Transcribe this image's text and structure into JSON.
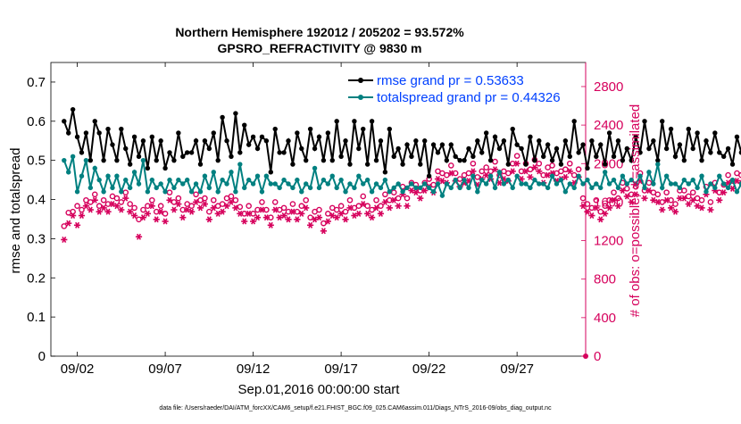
{
  "chart_data": {
    "type": "line",
    "title": "Northern Hemisphere 192012 / 205202 = 93.572%",
    "subtitle": "GPSRO_REFRACTIVITY @ 9830 m",
    "xlabel": "Sep.01,2016 00:00:00 start",
    "ylabel_left": "rmse and totalspread",
    "ylabel_right": "# of obs: o=possible; ∗=assimilated",
    "footer": "data file: /Users/raeder/DAI/ATM_forcXX/CAM6_setup/f.e21.FHIST_BGC.f09_025.CAM6assim.011/Diags_NTrS_2016-09/obs_diag_output.nc",
    "xlim": [
      0.5,
      30.9
    ],
    "ylim_left": [
      0,
      0.75
    ],
    "ylim_right": [
      0,
      3050
    ],
    "x_ticks": [
      {
        "value": 2,
        "label": "09/02"
      },
      {
        "value": 7,
        "label": "09/07"
      },
      {
        "value": 12,
        "label": "09/12"
      },
      {
        "value": 17,
        "label": "09/17"
      },
      {
        "value": 22,
        "label": "09/22"
      },
      {
        "value": 27,
        "label": "09/27"
      }
    ],
    "y_ticks_left": [
      "0",
      "0.1",
      "0.2",
      "0.3",
      "0.4",
      "0.5",
      "0.6",
      "0.7"
    ],
    "y_ticks_right": [
      "0",
      "400",
      "800",
      "1200",
      "1600",
      "2000",
      "2400",
      "2800"
    ],
    "time_step_days": 0.25,
    "start_day": 1.25,
    "series": [
      {
        "name": "rmse grand pr = 0.53633",
        "color": "#000000",
        "marker": "star",
        "values": [
          0.6,
          0.57,
          0.63,
          0.56,
          0.52,
          0.57,
          0.5,
          0.6,
          0.57,
          0.5,
          0.58,
          0.54,
          0.5,
          0.58,
          0.53,
          0.49,
          0.56,
          0.51,
          0.55,
          0.48,
          0.56,
          0.5,
          0.55,
          0.48,
          0.52,
          0.5,
          0.57,
          0.51,
          0.52,
          0.52,
          0.55,
          0.49,
          0.55,
          0.53,
          0.57,
          0.5,
          0.61,
          0.55,
          0.51,
          0.62,
          0.52,
          0.59,
          0.54,
          0.56,
          0.53,
          0.56,
          0.55,
          0.47,
          0.58,
          0.52,
          0.52,
          0.55,
          0.49,
          0.57,
          0.53,
          0.5,
          0.58,
          0.53,
          0.56,
          0.5,
          0.57,
          0.5,
          0.6,
          0.51,
          0.55,
          0.49,
          0.6,
          0.53,
          0.58,
          0.49,
          0.6,
          0.5,
          0.55,
          0.47,
          0.58,
          0.51,
          0.53,
          0.49,
          0.54,
          0.51,
          0.55,
          0.49,
          0.55,
          0.46,
          0.54,
          0.52,
          0.54,
          0.5,
          0.54,
          0.51,
          0.5,
          0.5,
          0.53,
          0.51,
          0.55,
          0.52,
          0.57,
          0.5,
          0.56,
          0.53,
          0.55,
          0.49,
          0.58,
          0.54,
          0.53,
          0.49,
          0.56,
          0.5,
          0.55,
          0.51,
          0.54,
          0.5,
          0.53,
          0.49,
          0.55,
          0.51,
          0.6,
          0.52,
          0.54,
          0.48,
          0.55,
          0.51,
          0.54,
          0.49,
          0.57,
          0.51,
          0.55,
          0.5,
          0.53,
          0.5,
          0.56,
          0.52,
          0.6,
          0.53,
          0.55,
          0.5,
          0.6,
          0.53,
          0.58,
          0.51,
          0.54,
          0.5,
          0.58,
          0.53,
          0.57,
          0.5,
          0.55,
          0.52,
          0.57,
          0.52,
          0.51,
          0.53,
          0.49,
          0.56,
          0.52,
          0.51,
          0.55
        ]
      },
      {
        "name": "totalspread grand pr = 0.44326",
        "color": "#008080",
        "marker": "dot",
        "values": [
          0.5,
          0.47,
          0.51,
          0.42,
          0.46,
          0.5,
          0.43,
          0.48,
          0.45,
          0.42,
          0.46,
          0.43,
          0.46,
          0.42,
          0.45,
          0.43,
          0.47,
          0.44,
          0.5,
          0.42,
          0.45,
          0.43,
          0.44,
          0.42,
          0.45,
          0.43,
          0.45,
          0.44,
          0.45,
          0.42,
          0.44,
          0.42,
          0.46,
          0.43,
          0.47,
          0.42,
          0.45,
          0.44,
          0.47,
          0.42,
          0.49,
          0.43,
          0.45,
          0.44,
          0.46,
          0.42,
          0.46,
          0.44,
          0.44,
          0.43,
          0.45,
          0.44,
          0.43,
          0.45,
          0.42,
          0.44,
          0.43,
          0.48,
          0.43,
          0.45,
          0.44,
          0.46,
          0.43,
          0.45,
          0.42,
          0.44,
          0.43,
          0.46,
          0.44,
          0.45,
          0.42,
          0.44,
          0.43,
          0.45,
          0.42,
          0.43,
          0.44,
          0.42,
          0.43,
          0.44,
          0.43,
          0.43,
          0.44,
          0.43,
          0.42,
          0.44,
          0.41,
          0.44,
          0.43,
          0.45,
          0.43,
          0.45,
          0.43,
          0.46,
          0.42,
          0.45,
          0.44,
          0.46,
          0.43,
          0.47,
          0.44,
          0.45,
          0.43,
          0.46,
          0.44,
          0.44,
          0.43,
          0.45,
          0.44,
          0.44,
          0.43,
          0.46,
          0.44,
          0.45,
          0.42,
          0.44,
          0.43,
          0.46,
          0.44,
          0.45,
          0.43,
          0.44,
          0.43,
          0.47,
          0.44,
          0.45,
          0.43,
          0.46,
          0.44,
          0.45,
          0.44,
          0.46,
          0.43,
          0.47,
          0.44,
          0.49,
          0.43,
          0.46,
          0.44,
          0.44,
          0.43,
          0.45,
          0.44,
          0.45,
          0.43,
          0.46,
          0.42,
          0.44,
          0.43,
          0.46,
          0.44,
          0.43,
          0.45,
          0.42,
          0.44,
          0.42,
          0.46
        ]
      },
      {
        "name": "possible",
        "color": "#d6005c",
        "marker": "circle",
        "axis": "right",
        "values": [
          1350,
          1490,
          1500,
          1560,
          1520,
          1620,
          1600,
          1680,
          1560,
          1620,
          1580,
          1660,
          1640,
          1600,
          1700,
          1580,
          1540,
          1420,
          1520,
          1560,
          1620,
          1500,
          1560,
          1480,
          1700,
          1600,
          1640,
          1520,
          1580,
          1560,
          1680,
          1620,
          1640,
          1500,
          1620,
          1560,
          1580,
          1640,
          1660,
          1620,
          1550,
          1480,
          1560,
          1480,
          1520,
          1600,
          1520,
          1440,
          1600,
          1520,
          1540,
          1500,
          1580,
          1500,
          1560,
          1620,
          1440,
          1500,
          1520,
          1380,
          1480,
          1540,
          1520,
          1560,
          1500,
          1620,
          1540,
          1560,
          1660,
          1560,
          1520,
          1620,
          1560,
          1680,
          1620,
          1700,
          1640,
          1760,
          1640,
          1800,
          1780,
          1720,
          1800,
          1840,
          1780,
          1920,
          1900,
          1880,
          1980,
          1900,
          1840,
          1880,
          1900,
          2000,
          1860,
          1920,
          1960,
          1920,
          2020,
          1880,
          1920,
          1900,
          2000,
          2080,
          1920,
          2000,
          1940,
          2040,
          2000,
          1880,
          1960,
          1980,
          1900,
          1920,
          1940,
          2000,
          1880,
          1940,
          1640,
          1580,
          1540,
          1620,
          1500,
          1560,
          1620,
          1700,
          1640,
          1800,
          1740,
          1680,
          1760,
          1900,
          1720,
          1800,
          1700,
          1680,
          1600,
          1700,
          1620,
          1580,
          1720,
          1720,
          1660,
          1700,
          1640,
          1620,
          1760,
          1600,
          1800,
          1700,
          1780,
          1880,
          1820,
          1900,
          1880
        ]
      },
      {
        "name": "assimilated",
        "color": "#d6005c",
        "marker": "asterisk",
        "axis": "right",
        "values": [
          1210,
          1380,
          1460,
          1360,
          1460,
          1560,
          1520,
          1620,
          1500,
          1540,
          1500,
          1580,
          1560,
          1520,
          1640,
          1500,
          1460,
          1240,
          1440,
          1480,
          1560,
          1420,
          1500,
          1400,
          1620,
          1520,
          1580,
          1440,
          1520,
          1500,
          1600,
          1540,
          1580,
          1420,
          1540,
          1480,
          1500,
          1560,
          1600,
          1540,
          1480,
          1400,
          1480,
          1400,
          1440,
          1520,
          1440,
          1360,
          1520,
          1440,
          1460,
          1420,
          1500,
          1420,
          1480,
          1540,
          1360,
          1420,
          1440,
          1300,
          1400,
          1460,
          1440,
          1480,
          1420,
          1540,
          1460,
          1480,
          1580,
          1480,
          1440,
          1540,
          1480,
          1600,
          1540,
          1620,
          1560,
          1680,
          1560,
          1720,
          1700,
          1640,
          1720,
          1760,
          1700,
          1840,
          1820,
          1800,
          1900,
          1820,
          1760,
          1800,
          1820,
          1920,
          1780,
          1840,
          1880,
          1840,
          1940,
          1800,
          1840,
          1820,
          1920,
          2000,
          1840,
          1920,
          1860,
          1960,
          1920,
          1800,
          1880,
          1900,
          1820,
          1840,
          1860,
          1920,
          1800,
          1860,
          1560,
          1500,
          1460,
          1540,
          1420,
          1480,
          1540,
          1620,
          1560,
          1720,
          1660,
          1600,
          1680,
          1820,
          1640,
          1720,
          1620,
          1600,
          1520,
          1620,
          1540,
          1500,
          1640,
          1640,
          1580,
          1620,
          1560,
          1540,
          1680,
          1520,
          1720,
          1620,
          1700,
          1800,
          1740,
          1820,
          1800
        ]
      }
    ],
    "right_axis_extra_label": "0"
  }
}
